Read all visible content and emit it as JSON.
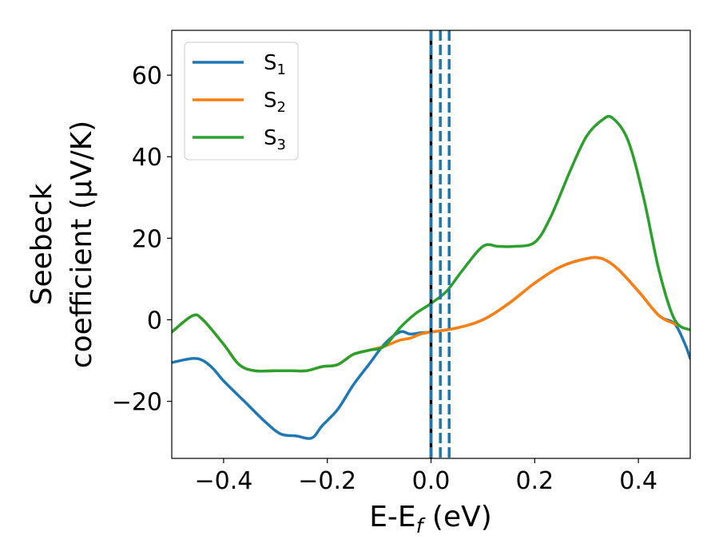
{
  "chart_data": {
    "type": "line",
    "xlabel": {
      "main": "E-E",
      "sub": "f",
      "unit": " (eV)"
    },
    "ylabel": {
      "line1": "Seebeck",
      "line2": "coefficient  (μV/K)"
    },
    "xlim": [
      -0.5,
      0.5
    ],
    "ylim": [
      -34,
      71
    ],
    "xticks": [
      -0.4,
      -0.2,
      0.0,
      0.2,
      0.4
    ],
    "xtick_labels": [
      "−0.4",
      "−0.2",
      "0.0",
      "0.2",
      "0.4"
    ],
    "yticks": [
      -20,
      0,
      20,
      40,
      60
    ],
    "ytick_labels": [
      "−20",
      "0",
      "20",
      "40",
      "60"
    ],
    "grid": false,
    "legend_position": "top-left",
    "series": [
      {
        "name": "S",
        "sub": "1",
        "color": "#1f77b4",
        "x": [
          -0.5,
          -0.46,
          -0.44,
          -0.42,
          -0.4,
          -0.36,
          -0.32,
          -0.29,
          -0.26,
          -0.23,
          -0.21,
          -0.18,
          -0.15,
          -0.12,
          -0.09,
          -0.06,
          -0.04,
          -0.02,
          0.0,
          0.05,
          0.1,
          0.15,
          0.2,
          0.25,
          0.3,
          0.33,
          0.36,
          0.4,
          0.44,
          0.47,
          0.49,
          0.5
        ],
        "y": [
          -10.5,
          -9.5,
          -10,
          -12,
          -15,
          -20,
          -25,
          -28,
          -28.5,
          -29,
          -26,
          -22,
          -16,
          -11,
          -6,
          -3,
          -3.5,
          -3.2,
          -3,
          -2,
          0,
          4,
          9,
          13,
          15,
          15,
          12.5,
          7,
          1,
          -1,
          -6,
          -9.5
        ]
      },
      {
        "name": "S",
        "sub": "2",
        "color": "#ff7f0e",
        "x": [
          -0.5,
          -0.46,
          -0.44,
          -0.4,
          -0.37,
          -0.34,
          -0.3,
          -0.27,
          -0.24,
          -0.21,
          -0.18,
          -0.15,
          -0.12,
          -0.09,
          -0.06,
          -0.04,
          -0.02,
          0.0,
          0.05,
          0.1,
          0.15,
          0.2,
          0.25,
          0.3,
          0.33,
          0.36,
          0.4,
          0.44,
          0.47,
          0.48
        ],
        "y": [
          -3,
          1,
          0,
          -6,
          -11,
          -12.5,
          -12.5,
          -12.5,
          -12.5,
          -11.5,
          -11,
          -8.5,
          -7.5,
          -6.5,
          -5,
          -4.5,
          -3.5,
          -3,
          -2,
          0,
          4,
          9,
          13,
          15,
          15,
          12.5,
          7,
          1,
          -1,
          -1.5
        ]
      },
      {
        "name": "S",
        "sub": "3",
        "color": "#2ca02c",
        "x": [
          -0.5,
          -0.46,
          -0.44,
          -0.4,
          -0.37,
          -0.34,
          -0.3,
          -0.27,
          -0.24,
          -0.21,
          -0.18,
          -0.15,
          -0.12,
          -0.09,
          -0.06,
          -0.03,
          0.0,
          0.03,
          0.06,
          0.1,
          0.13,
          0.16,
          0.2,
          0.23,
          0.27,
          0.3,
          0.33,
          0.35,
          0.38,
          0.41,
          0.44,
          0.47,
          0.5
        ],
        "y": [
          -3,
          1,
          0,
          -6,
          -11,
          -12.5,
          -12.5,
          -12.5,
          -12.5,
          -11.5,
          -11,
          -8.5,
          -7.5,
          -6.5,
          -2,
          1.5,
          4,
          7,
          12,
          18,
          18,
          18,
          19,
          25,
          37,
          45,
          49,
          49.5,
          44,
          30,
          12,
          0,
          -2.5
        ]
      }
    ],
    "vlines": [
      {
        "x": 0.0,
        "color": "#000000",
        "style": "solid"
      },
      {
        "x": 0.0,
        "color": "#1f77b4",
        "style": "dashed"
      },
      {
        "x": 0.018,
        "color": "#1f77b4",
        "style": "dashed"
      },
      {
        "x": 0.035,
        "color": "#1f77b4",
        "style": "dashed"
      }
    ]
  }
}
